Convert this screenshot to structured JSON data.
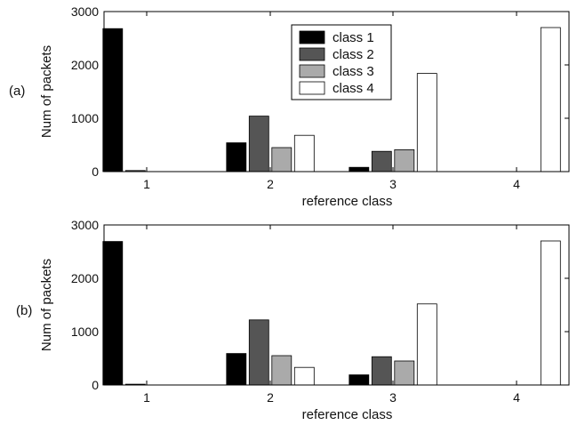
{
  "figure": {
    "panel_a_label": "(a)",
    "panel_b_label": "(b)"
  },
  "chart_data": [
    {
      "type": "bar",
      "panel": "(a)",
      "categories": [
        "1",
        "2",
        "3",
        "4"
      ],
      "xlabel": "reference class",
      "ylabel": "Num of packets",
      "ylim": [
        0,
        3000
      ],
      "yticks": [
        "0",
        "1000",
        "2000",
        "3000"
      ],
      "grid": false,
      "legend_position": "top-center",
      "series": [
        {
          "name": "class 1",
          "color": "#000000",
          "values": [
            2680,
            540,
            80,
            0
          ]
        },
        {
          "name": "class 2",
          "color": "#555555",
          "values": [
            20,
            1040,
            380,
            0
          ]
        },
        {
          "name": "class 3",
          "color": "#aaaaaa",
          "values": [
            0,
            450,
            410,
            0
          ]
        },
        {
          "name": "class 4",
          "color": "#ffffff",
          "values": [
            0,
            680,
            1840,
            2700
          ]
        }
      ]
    },
    {
      "type": "bar",
      "panel": "(b)",
      "categories": [
        "1",
        "2",
        "3",
        "4"
      ],
      "xlabel": "reference class",
      "ylabel": "Num of packets",
      "ylim": [
        0,
        3000
      ],
      "yticks": [
        "0",
        "1000",
        "2000",
        "3000"
      ],
      "grid": false,
      "series": [
        {
          "name": "class 1",
          "color": "#000000",
          "values": [
            2690,
            590,
            190,
            0
          ]
        },
        {
          "name": "class 2",
          "color": "#555555",
          "values": [
            15,
            1220,
            530,
            0
          ]
        },
        {
          "name": "class 3",
          "color": "#aaaaaa",
          "values": [
            0,
            550,
            450,
            0
          ]
        },
        {
          "name": "class 4",
          "color": "#ffffff",
          "values": [
            0,
            330,
            1520,
            2700
          ]
        }
      ]
    }
  ]
}
